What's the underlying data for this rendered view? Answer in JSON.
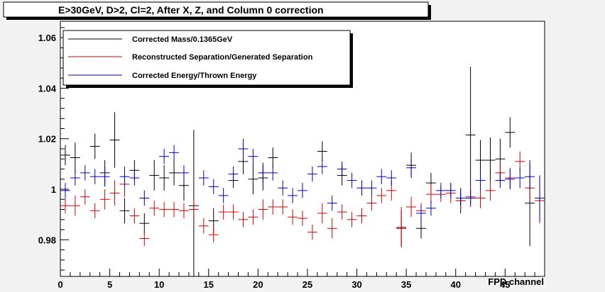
{
  "chart_data": {
    "type": "scatter",
    "title": "E>30GeV, D>2, Cl=2, After X, Z, and Column 0 correction",
    "xlabel": "FPD channel",
    "ylabel": "",
    "xlim": [
      0,
      49
    ],
    "ylim": [
      0.9655,
      1.0665
    ],
    "x_ticks": [
      0,
      5,
      10,
      15,
      20,
      25,
      30,
      35,
      40,
      45
    ],
    "x_tick_labels": [
      "0",
      "5",
      "10",
      "15",
      "20",
      "25",
      "30",
      "35",
      "40",
      "45"
    ],
    "y_ticks": [
      0.98,
      1.0,
      1.02,
      1.04,
      1.06
    ],
    "y_tick_labels": [
      "0.98",
      "1",
      "1.02",
      "1.04",
      "1.06"
    ],
    "grid": false,
    "legend_position": "top-left",
    "series": [
      {
        "name": "Corrected Mass/0.1365GeV",
        "color": "#000000",
        "x": [
          0.5,
          1.5,
          3.5,
          4.5,
          5.5,
          6.5,
          7.5,
          8.5,
          9.5,
          10.5,
          11.5,
          12.5,
          13.5,
          15.5,
          17.5,
          18.5,
          19.5,
          20.5,
          21.5,
          26.5,
          28.5,
          34.5,
          35.5,
          36.5,
          37.5,
          40.5,
          41.5,
          42.5,
          43.5,
          44.5,
          45.5,
          47.5
        ],
        "y": [
          1.0135,
          1.0125,
          1.017,
          1.0065,
          1.0195,
          0.9915,
          1.0075,
          0.9865,
          1.0055,
          1.0045,
          1.0065,
          1.0015,
          0.9935,
          0.9875,
          1.0035,
          1.011,
          1.004,
          1.0045,
          1.0125,
          1.015,
          1.0055,
          0.9845,
          1.0095,
          0.9845,
          1.0025,
          0.9955,
          1.0215,
          1.0115,
          1.0115,
          1.012,
          1.0225,
          0.9945
        ],
        "err": [
          0.004,
          0.006,
          0.005,
          0.005,
          0.011,
          0.005,
          0.004,
          0.004,
          0.006,
          0.005,
          0.005,
          0.006,
          0.03,
          0.005,
          0.003,
          0.005,
          0.006,
          0.005,
          0.004,
          0.004,
          0.004,
          0.007,
          0.005,
          0.004,
          0.004,
          0.005,
          0.027,
          0.008,
          0.009,
          0.008,
          0.006,
          0.017
        ]
      },
      {
        "name": "Reconstructed Separation/Generated Separation",
        "color": "#d40000",
        "x": [
          0.5,
          1.5,
          2.5,
          3.5,
          4.5,
          5.5,
          6.5,
          7.5,
          8.5,
          9.5,
          10.5,
          11.5,
          12.5,
          13.5,
          14.5,
          15.5,
          16.5,
          17.5,
          18.5,
          19.5,
          20.5,
          21.5,
          22.5,
          23.5,
          24.5,
          25.5,
          26.5,
          27.5,
          28.5,
          29.5,
          30.5,
          31.5,
          32.5,
          33.5,
          34.5,
          35.5,
          36.5,
          37.5,
          38.5,
          39.5,
          40.5,
          41.5,
          42.5,
          43.5,
          44.5,
          45.5,
          46.5,
          47.5,
          48.5
        ],
        "y": [
          0.9935,
          0.9935,
          0.997,
          0.9915,
          0.996,
          0.9985,
          1.002,
          0.9895,
          0.9805,
          0.9925,
          0.992,
          0.992,
          0.9915,
          0.992,
          0.9855,
          0.982,
          0.991,
          0.991,
          0.988,
          0.989,
          0.992,
          0.993,
          0.993,
          0.989,
          0.9885,
          0.983,
          0.9905,
          0.9845,
          0.991,
          0.988,
          0.9895,
          0.9945,
          0.9975,
          0.9995,
          0.985,
          0.993,
          0.9915,
          0.998,
          0.998,
          0.9985,
          0.9955,
          0.997,
          0.9965,
          0.9995,
          1.0065,
          1.0045,
          1.011,
          1.0005,
          0.9955
        ],
        "err": [
          0.003,
          0.004,
          0.003,
          0.003,
          0.004,
          0.005,
          0.005,
          0.003,
          0.003,
          0.003,
          0.003,
          0.003,
          0.003,
          0.004,
          0.003,
          0.003,
          0.003,
          0.003,
          0.003,
          0.003,
          0.004,
          0.003,
          0.003,
          0.003,
          0.003,
          0.003,
          0.004,
          0.004,
          0.003,
          0.003,
          0.003,
          0.003,
          0.003,
          0.004,
          0.008,
          0.004,
          0.003,
          0.004,
          0.003,
          0.004,
          0.003,
          0.004,
          0.004,
          0.004,
          0.004,
          0.004,
          0.004,
          0.005,
          0.009
        ]
      },
      {
        "name": "Corrected Energy/Thrown Energy",
        "color": "#0000c8",
        "x": [
          0.5,
          1.5,
          2.5,
          3.5,
          4.5,
          6.5,
          7.5,
          8.5,
          10.5,
          11.5,
          12.5,
          14.5,
          15.5,
          16.5,
          17.5,
          18.5,
          19.5,
          20.5,
          21.5,
          22.5,
          23.5,
          24.5,
          25.5,
          26.5,
          27.5,
          28.5,
          29.5,
          30.5,
          31.5,
          32.5,
          33.5,
          35.5,
          36.5,
          37.5,
          38.5,
          39.5,
          40.5,
          41.5,
          42.5,
          44.5,
          45.5,
          46.5,
          47.5,
          48.5
        ],
        "y": [
          0.9995,
          1.0045,
          1.0065,
          1.005,
          1.005,
          1.005,
          1.0045,
          0.9965,
          1.013,
          1.0145,
          1.0065,
          1.0045,
          1.001,
          0.9975,
          1.006,
          1.016,
          1.013,
          1.0065,
          1.0065,
          1.0005,
          0.9975,
          0.9995,
          1.006,
          1.009,
          0.9945,
          1.008,
          1.0035,
          1.0005,
          1.0005,
          1.005,
          1.0045,
          1.0085,
          0.9905,
          0.9925,
          0.9995,
          0.9995,
          0.9965,
          0.9965,
          1.0035,
          1.0035,
          1.004,
          1.0045,
          1.005,
          0.9965
        ],
        "err": [
          0.003,
          0.003,
          0.003,
          0.003,
          0.004,
          0.004,
          0.003,
          0.003,
          0.003,
          0.003,
          0.003,
          0.003,
          0.003,
          0.003,
          0.003,
          0.004,
          0.003,
          0.004,
          0.003,
          0.003,
          0.003,
          0.003,
          0.003,
          0.003,
          0.003,
          0.003,
          0.003,
          0.003,
          0.003,
          0.003,
          0.003,
          0.003,
          0.003,
          0.003,
          0.003,
          0.003,
          0.003,
          0.003,
          0.004,
          0.003,
          0.004,
          0.004,
          0.005,
          0.009
        ]
      }
    ]
  }
}
